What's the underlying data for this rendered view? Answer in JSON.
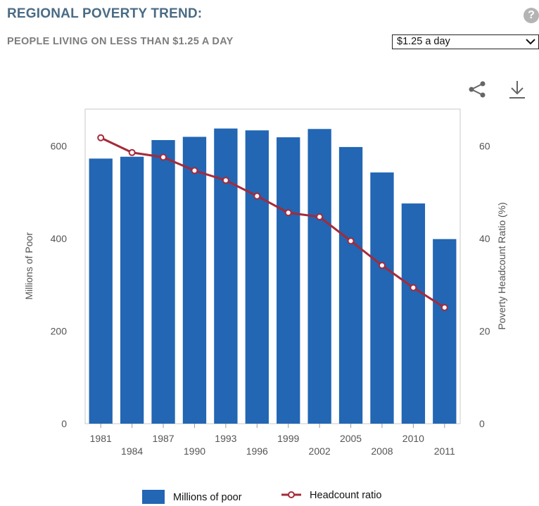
{
  "header": {
    "title": "REGIONAL POVERTY TREND:",
    "subtitle": "PEOPLE LIVING ON LESS THAN $1.25 A DAY",
    "help_glyph": "?"
  },
  "selector": {
    "selected": "$1.25 a day",
    "chevron": "❯"
  },
  "toolbar": {
    "share_icon": "share-icon",
    "download_icon": "download-icon"
  },
  "colors": {
    "bar": "#2266b4",
    "line": "#a52a3a",
    "title": "#4a6b85"
  },
  "chart_data": {
    "type": "bar",
    "categories": [
      "1981",
      "1984",
      "1987",
      "1990",
      "1993",
      "1996",
      "1999",
      "2002",
      "2005",
      "2008",
      "2010",
      "2011"
    ],
    "series": [
      {
        "name": "Millions of poor",
        "type": "bar",
        "axis": "left",
        "values": [
          573,
          577,
          613,
          620,
          638,
          634,
          619,
          637,
          598,
          543,
          476,
          399
        ]
      },
      {
        "name": "Headcount ratio",
        "type": "line",
        "axis": "right",
        "values": [
          61.8,
          58.6,
          57.6,
          54.7,
          52.6,
          49.2,
          45.6,
          44.7,
          39.5,
          34.2,
          29.4,
          25.1
        ]
      }
    ],
    "ylabel": "Millions of Poor",
    "y2label": "Poverty Headcount Ratio (%)",
    "ylim": [
      0,
      680
    ],
    "y2lim": [
      0,
      68
    ],
    "yticks": [
      "0",
      "200",
      "400",
      "600"
    ],
    "y2ticks": [
      "0",
      "20",
      "40",
      "60"
    ],
    "grid": false,
    "legend_position": "bottom"
  }
}
